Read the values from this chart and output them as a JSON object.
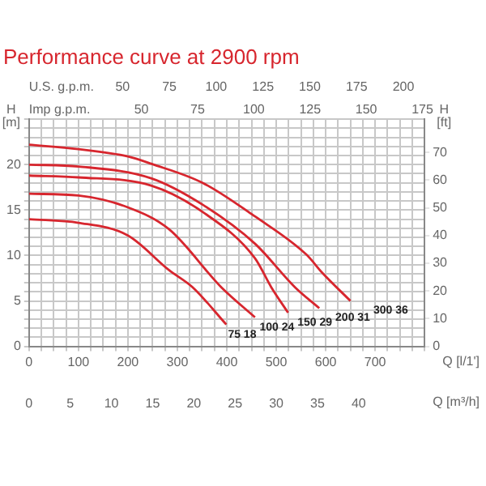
{
  "chart_data": {
    "type": "line",
    "title": "Performance curve at 2900 rpm",
    "xlabel": "Q [l/1']",
    "ylabel": "H [m]",
    "y2label": "H [ft]",
    "x2label": "Q [m³/h]",
    "annotations": [
      "U.S. g.p.m.",
      "50",
      "75",
      "100",
      "125",
      "150",
      "175",
      "200",
      "Imp g.p.m.",
      "50",
      "75",
      "100",
      "125",
      "150",
      "175"
    ],
    "xlim": [
      0,
      800
    ],
    "xticks": [
      0,
      {
        "value": 25,
        "label": null
      },
      {
        "value": 50,
        "label": null
      },
      {
        "value": 75,
        "label": null
      },
      100,
      {
        "value": 125,
        "label": null
      },
      {
        "value": 150,
        "label": null
      },
      {
        "value": 175,
        "label": null
      },
      200,
      {
        "value": 225,
        "label": null
      },
      {
        "value": 250,
        "label": null
      },
      {
        "value": 275,
        "label": null
      },
      300,
      {
        "value": 325,
        "label": null
      },
      {
        "value": 350,
        "label": null
      },
      {
        "value": 375,
        "label": null
      },
      400,
      {
        "value": 425,
        "label": null
      },
      {
        "value": 450,
        "label": null
      },
      {
        "value": 475,
        "label": null
      },
      500,
      {
        "value": 525,
        "label": null
      },
      {
        "value": 550,
        "label": null
      },
      {
        "value": 575,
        "label": null
      },
      600,
      {
        "value": 625,
        "label": null
      },
      {
        "value": 650,
        "label": null
      },
      {
        "value": 675,
        "label": null
      },
      700,
      {
        "value": 725,
        "label": null
      },
      {
        "value": 750,
        "label": null
      },
      {
        "value": 775,
        "label": null
      },
      {
        "value": 800,
        "label": null
      }
    ],
    "ylim": [
      0,
      25
    ],
    "yticks": [
      0,
      {
        "value": 1,
        "label": null
      },
      {
        "value": 2,
        "label": null
      },
      {
        "value": 3,
        "label": null
      },
      {
        "value": 4,
        "label": null
      },
      5,
      {
        "value": 6,
        "label": null
      },
      {
        "value": 7,
        "label": null
      },
      {
        "value": 8,
        "label": null
      },
      {
        "value": 9,
        "label": null
      },
      10,
      {
        "value": 11,
        "label": null
      },
      {
        "value": 12,
        "label": null
      },
      {
        "value": 13,
        "label": null
      },
      {
        "value": 14,
        "label": null
      },
      15,
      {
        "value": 16,
        "label": null
      },
      {
        "value": 17,
        "label": null
      },
      {
        "value": 18,
        "label": null
      },
      {
        "value": 19,
        "label": null
      },
      20,
      {
        "value": 21,
        "label": null
      },
      {
        "value": 22,
        "label": null
      },
      {
        "value": 23,
        "label": null
      },
      {
        "value": 24,
        "label": null
      },
      {
        "value": 25,
        "label": null
      }
    ],
    "y2lim": [
      0,
      82
    ],
    "y2ticks": [
      0,
      10,
      20,
      30,
      40,
      50,
      60,
      70
    ],
    "x2lim": [
      0,
      48
    ],
    "x2ticks": [
      0,
      5,
      10,
      15,
      20,
      25,
      30,
      35,
      40
    ],
    "grid": true,
    "legend": false,
    "marker": "none",
    "line_style": "solid",
    "series": [
      {
        "name": "75 18",
        "color": "#d7262e",
        "x": [
          0,
          100,
          200,
          283,
          331,
          399
        ],
        "values": [
          14.0,
          13.6,
          12.2,
          8.4,
          6.5,
          2.4
        ]
      },
      {
        "name": "100 24",
        "color": "#d7262e",
        "x": [
          0,
          100,
          200,
          283,
          389,
          457
        ],
        "values": [
          16.8,
          16.6,
          15.3,
          12.9,
          6.5,
          3.2
        ]
      },
      {
        "name": "150 29",
        "color": "#d7262e",
        "x": [
          0,
          100,
          247,
          351,
          457,
          490,
          524
        ],
        "values": [
          18.8,
          18.6,
          17.7,
          14.8,
          9.7,
          6.5,
          3.7
        ]
      },
      {
        "name": "200 31",
        "color": "#d7262e",
        "x": [
          0,
          100,
          247,
          351,
          457,
          538,
          587
        ],
        "values": [
          20.0,
          19.8,
          18.5,
          15.6,
          11.3,
          6.5,
          4.2
        ]
      },
      {
        "name": "300 36",
        "color": "#d7262e",
        "x": [
          0,
          100,
          200,
          247,
          351,
          457,
          561,
          593,
          650
        ],
        "values": [
          22.2,
          21.7,
          20.9,
          20.1,
          18.0,
          14.3,
          10.1,
          8.1,
          5.0
        ]
      }
    ]
  }
}
